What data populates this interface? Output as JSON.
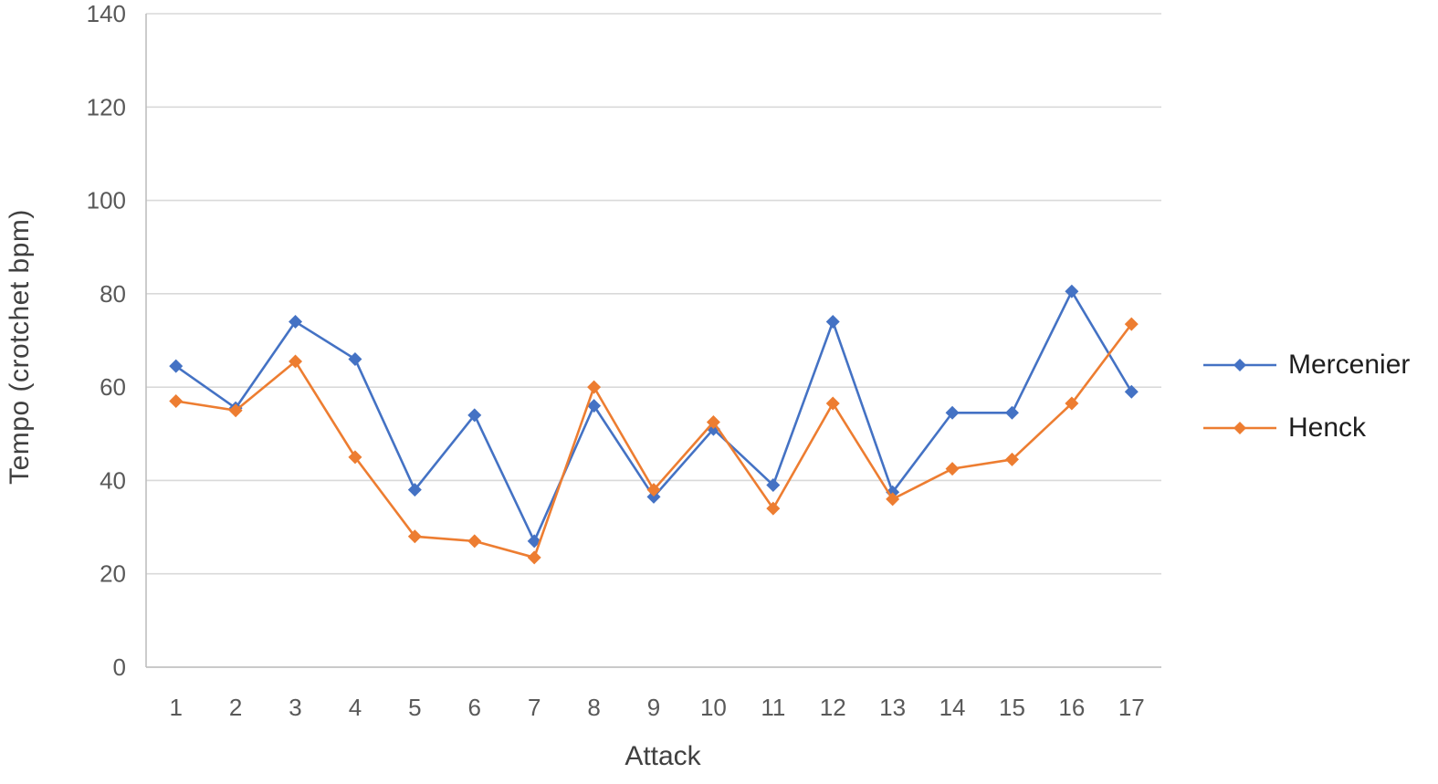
{
  "chart_data": {
    "type": "line",
    "title": "",
    "xlabel": "Attack",
    "ylabel": "Tempo (crotchet bpm)",
    "categories": [
      "1",
      "2",
      "3",
      "4",
      "5",
      "6",
      "7",
      "8",
      "9",
      "10",
      "11",
      "12",
      "13",
      "14",
      "15",
      "16",
      "17"
    ],
    "series": [
      {
        "name": "Mercenier",
        "color": "#4472C4",
        "marker": "diamond",
        "values": [
          64.5,
          55.5,
          74,
          66,
          38,
          54,
          27,
          56,
          36.5,
          51,
          39,
          74,
          37.5,
          54.5,
          54.5,
          80.5,
          59
        ]
      },
      {
        "name": "Henck",
        "color": "#ED7D31",
        "marker": "diamond",
        "values": [
          57,
          55,
          65.5,
          45,
          28,
          27,
          23.5,
          60,
          38,
          52.5,
          34,
          56.5,
          36,
          42.5,
          44.5,
          56.5,
          73.5
        ]
      }
    ],
    "ylim": [
      0,
      140
    ],
    "yticks": [
      0,
      20,
      40,
      60,
      80,
      100,
      120,
      140
    ],
    "grid": true,
    "legend_position": "right"
  },
  "colors": {
    "gridline": "#D9D9D9",
    "axis_line": "#BFBFBF",
    "tick_label": "#595959",
    "axis_title": "#404040",
    "legend_text": "#1f1f1f",
    "background": "#ffffff"
  }
}
